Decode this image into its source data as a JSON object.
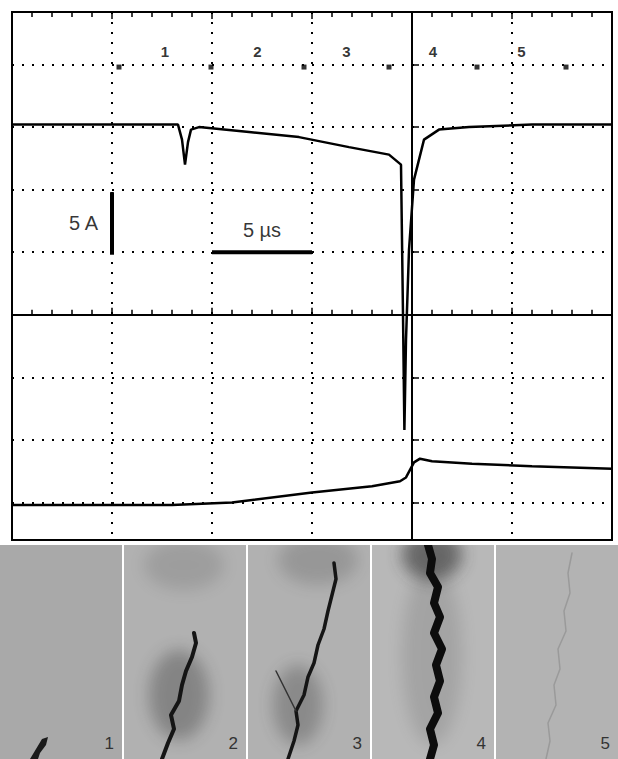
{
  "chart_data": {
    "type": "line",
    "xlim": [
      -20,
      10
    ],
    "xticks": [
      -20,
      -15,
      -10,
      -5,
      0,
      5,
      10
    ],
    "ylim": [
      -18,
      24.2
    ],
    "yticks": [
      -15,
      -10,
      -5,
      0,
      5,
      10,
      15,
      20
    ],
    "grid": true,
    "tick_labels": false,
    "series": [
      {
        "color": "#000000",
        "x": [
          -20,
          -11.7,
          -11.5,
          -11.35,
          -11.2,
          -11.05,
          -10.65,
          -8.15,
          -5.65,
          -3.15,
          -1.15,
          -0.55,
          -0.45,
          -0.38,
          -0.3,
          -0.15,
          0.1,
          0.6,
          1.35,
          2.85,
          6,
          10
        ],
        "values": [
          15.2,
          15.2,
          14.0,
          12.0,
          13.8,
          14.8,
          15.0,
          14.6,
          14.2,
          13.4,
          12.8,
          12.0,
          0,
          -9.2,
          -2,
          5.2,
          10.8,
          14.0,
          14.8,
          15.0,
          15.2,
          15.2
        ]
      },
      {
        "color": "#000000",
        "x": [
          -20,
          -12,
          -9,
          -5,
          -2,
          -0.6,
          -0.3,
          -0.1,
          0.1,
          0.4,
          1,
          3,
          6,
          10
        ],
        "values": [
          -15.2,
          -15.2,
          -15.0,
          -14.2,
          -13.7,
          -13.3,
          -13.0,
          -12.4,
          -11.8,
          -11.5,
          -11.7,
          -11.9,
          -12.1,
          -12.3
        ]
      }
    ],
    "frame_marks": {
      "y": 19.8,
      "times": [
        -14.65,
        -10.05,
        -5.4,
        -1.15,
        3.25,
        7.7
      ],
      "labels": [
        "1",
        "2",
        "3",
        "4",
        "5"
      ]
    },
    "scale_bars": [
      {
        "label": "5 A",
        "x": [
          -15,
          -15
        ],
        "y": [
          4.8,
          9.8
        ]
      },
      {
        "label": "5 µs",
        "x": [
          -10,
          -5
        ],
        "y": [
          5,
          5
        ]
      }
    ],
    "photos": {
      "labels": [
        "1",
        "2",
        "3",
        "4",
        "5"
      ]
    }
  }
}
